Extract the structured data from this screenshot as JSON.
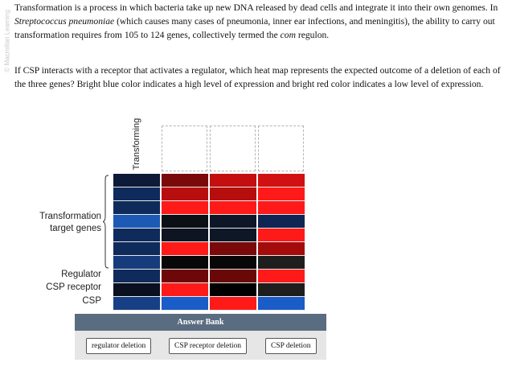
{
  "watermark": "© Macmillan Learning",
  "intro": {
    "s1": "Transformation is a process in which bacteria take up new DNA released by dead cells and integrate it into their own genomes. In ",
    "organism": "Streptococcus pneumoniae",
    "s2": " (which causes many cases of pneumonia, inner ear infections, and meningitis), the ability to carry out transformation requires from 105 to 124 genes, collectively termed the ",
    "regulon": "com",
    "s3": " regulon."
  },
  "question": "If CSP interacts with a receptor that activates a regulator, which heat map represents the expected outcome of a deletion of each of the three genes? Bright blue color indicates a high level of expression and bright red color indicates a low level of expression.",
  "row_labels": {
    "group": "Transformation target genes",
    "regulator": "Regulator",
    "receptor": "CSP receptor",
    "csp": "CSP"
  },
  "column_header": "Transforming",
  "heatmap_columns": [
    {
      "name": "transforming",
      "colors": [
        "#0d1b38",
        "#0f2b5c",
        "#0f2b5c",
        "#1c5ab6",
        "#0f2b5c",
        "#0f2b5c",
        "#163c7c",
        "#0f2b5c",
        "#0a1020",
        "#173f85"
      ]
    },
    {
      "name": "A",
      "colors": [
        "#7a0a0a",
        "#b90e0e",
        "#ff1a1a",
        "#0b0f16",
        "#0e1422",
        "#ff1a1a",
        "#080808",
        "#6e0808",
        "#ff1a1a",
        "#1a5cc8"
      ]
    },
    {
      "name": "B",
      "colors": [
        "#c30f0f",
        "#b60d0d",
        "#ff1a1a",
        "#0e1728",
        "#0e1726",
        "#7a0a0a",
        "#070707",
        "#6a0707",
        "#000000",
        "#ff1a1a"
      ]
    },
    {
      "name": "C",
      "colors": [
        "#d11111",
        "#ff1a1a",
        "#ff1a1a",
        "#0f2554",
        "#ff1a1a",
        "#a40c0c",
        "#1e1e1e",
        "#ff1a1a",
        "#1e1e1e",
        "#1a5cc8"
      ]
    }
  ],
  "answer_bank": {
    "title": "Answer Bank",
    "items": [
      "regulator deletion",
      "CSP receptor deletion",
      "CSP deletion"
    ]
  }
}
